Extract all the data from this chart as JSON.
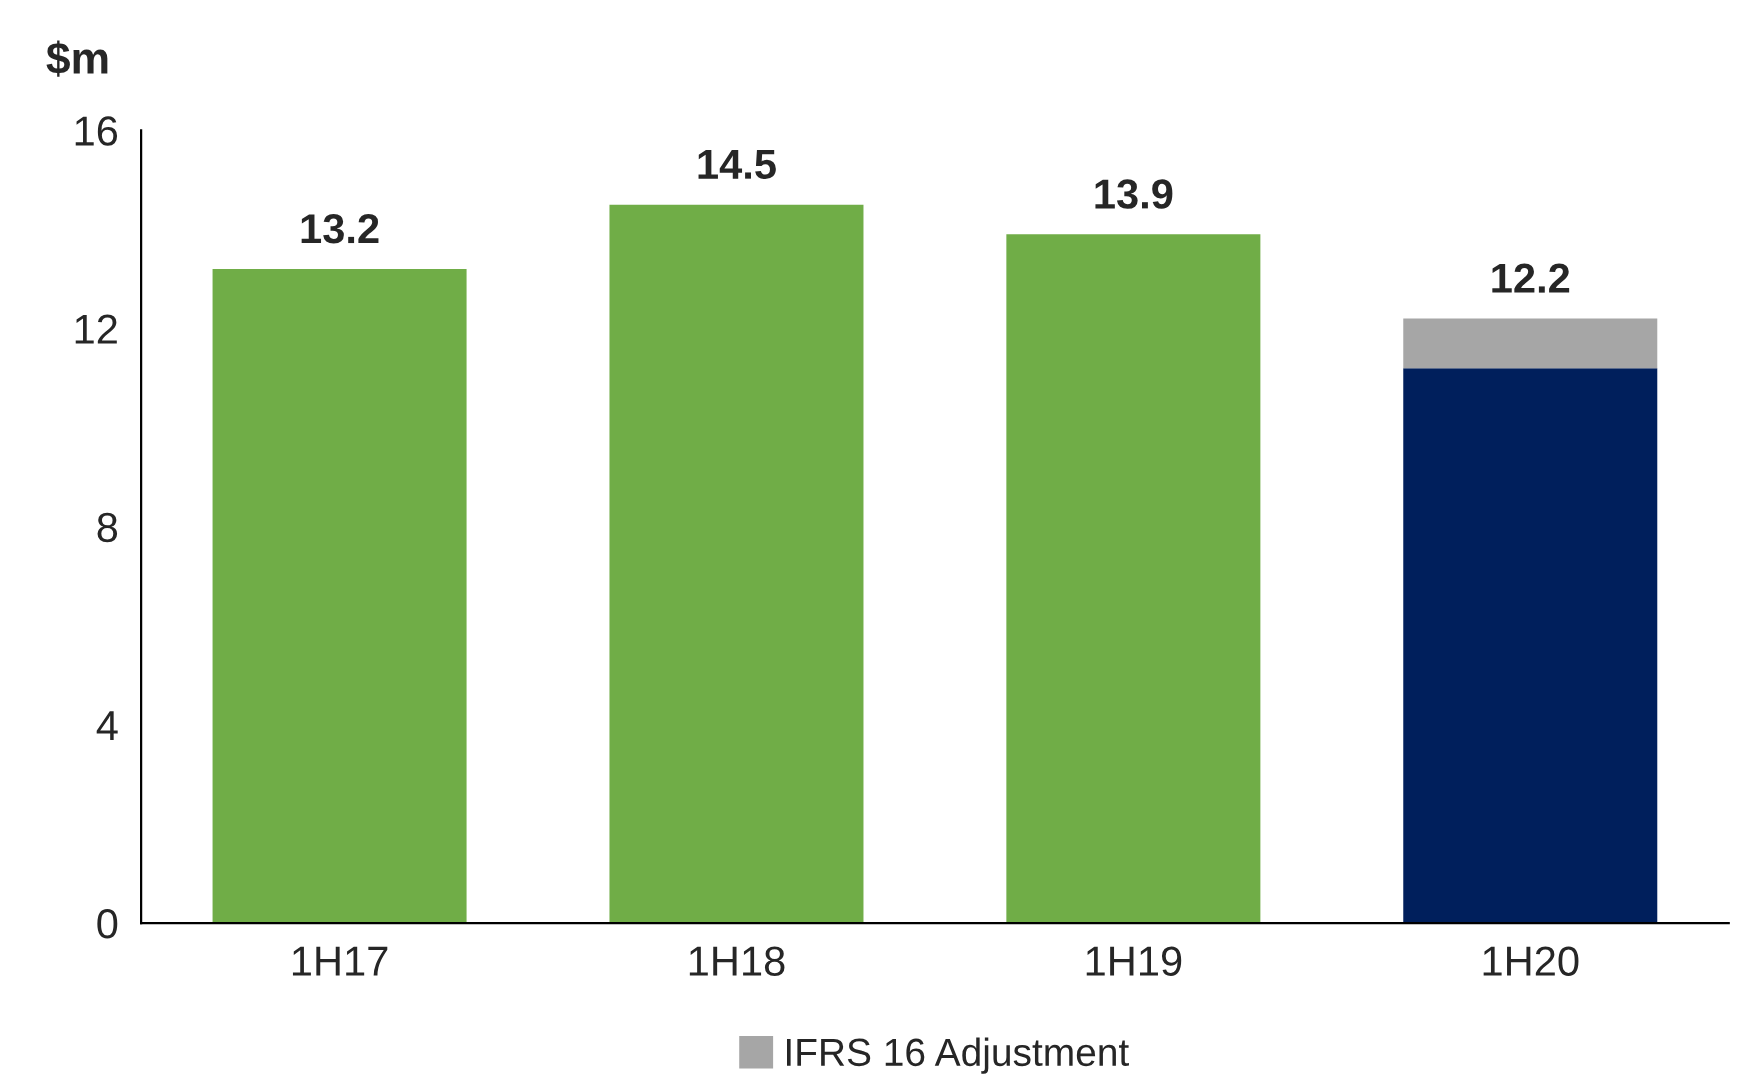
{
  "chart_data": {
    "type": "bar",
    "stacked": true,
    "ylabel": "$m",
    "categories": [
      "1H17",
      "1H18",
      "1H19",
      "1H20"
    ],
    "series": [
      {
        "colors": [
          "#70ad47",
          "#70ad47",
          "#70ad47",
          "#001f5c"
        ],
        "values": [
          13.2,
          14.5,
          13.9,
          11.2
        ]
      },
      {
        "name": "IFRS 16 Adjustment",
        "color": "#a6a6a6",
        "values": [
          null,
          null,
          null,
          1.0
        ]
      }
    ],
    "totals": [
      "13.2",
      "14.5",
      "13.9",
      "12.2"
    ],
    "ylim": [
      0,
      16
    ],
    "yticks": [
      0,
      4,
      8,
      12,
      16
    ],
    "grid": false,
    "legend": "bottom"
  }
}
